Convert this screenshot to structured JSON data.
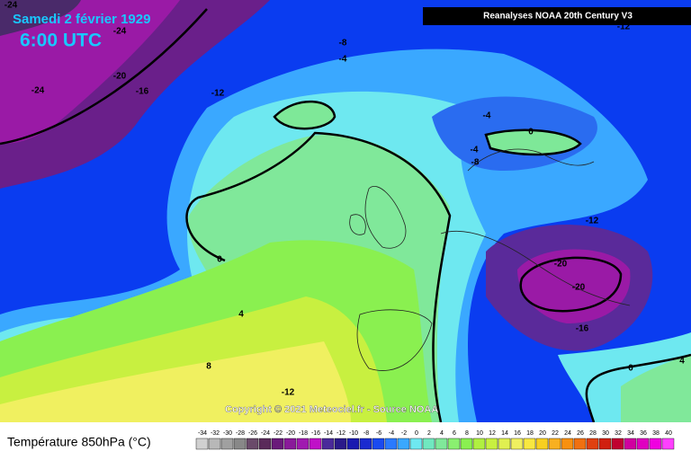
{
  "header": {
    "date": "Samedi 2 février 1929",
    "time": "6:00 UTC",
    "source": "Reanalyses NOAA 20th Century V3"
  },
  "copyright": "Copyright © 2021 Meteociel.fr - Source NOAA",
  "legend": {
    "title": "Température 850hPa (°C)",
    "ticks": [
      -34,
      -32,
      -30,
      -28,
      -26,
      -24,
      -22,
      -20,
      -18,
      -16,
      -14,
      -12,
      -10,
      -8,
      -6,
      -4,
      -2,
      0,
      2,
      4,
      6,
      8,
      10,
      12,
      14,
      16,
      18,
      20,
      22,
      24,
      26,
      28,
      30,
      32,
      34,
      36,
      38,
      40
    ]
  },
  "contour_labels": [
    -24,
    -24,
    -24,
    -20,
    -16,
    -12,
    -8,
    -4,
    -12,
    -4,
    0,
    -4,
    -8,
    0,
    4,
    8,
    -12,
    -12,
    -20,
    -20,
    -16,
    0,
    4
  ]
}
